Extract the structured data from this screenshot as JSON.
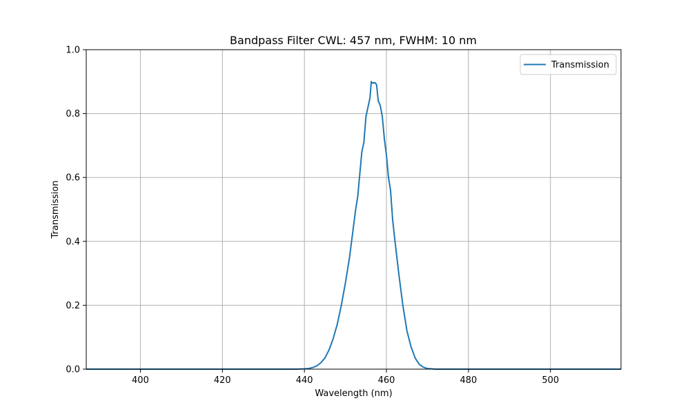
{
  "chart_data": {
    "type": "line",
    "title": "Bandpass Filter CWL: 457 nm, FWHM: 10 nm",
    "xlabel": "Wavelength (nm)",
    "ylabel": "Transmission",
    "xlim": [
      386.8,
      517.2
    ],
    "ylim": [
      0.0,
      1.0
    ],
    "xticks": [
      400,
      420,
      440,
      460,
      480,
      500
    ],
    "yticks": [
      0.0,
      0.2,
      0.4,
      0.6,
      0.8,
      1.0
    ],
    "xtick_labels": [
      "400",
      "420",
      "440",
      "460",
      "480",
      "500"
    ],
    "ytick_labels": [
      "0.0",
      "0.2",
      "0.4",
      "0.6",
      "0.8",
      "1.0"
    ],
    "grid": true,
    "legend": {
      "position": "top-right",
      "entries": [
        "Transmission"
      ]
    },
    "colors": {
      "series": "#1f77b4",
      "grid": "#b0b0b0"
    },
    "series": [
      {
        "name": "Transmission",
        "x": [
          386.8,
          400,
          420,
          438,
          440,
          441,
          442,
          443,
          444,
          445,
          446,
          447,
          448,
          449,
          450,
          451,
          452,
          452.5,
          453,
          453.5,
          454,
          454.5,
          455,
          455.5,
          456,
          456.3,
          456.7,
          457.0,
          457.3,
          457.6,
          458.0,
          458.5,
          459,
          459.5,
          460,
          460.5,
          461,
          461.5,
          462,
          463,
          464,
          465,
          466,
          467,
          468,
          469,
          470,
          471,
          472,
          474,
          476,
          480,
          500,
          517.2
        ],
        "y": [
          0.0,
          0.0,
          0.0,
          0.0,
          0.001,
          0.002,
          0.005,
          0.01,
          0.02,
          0.035,
          0.06,
          0.095,
          0.14,
          0.2,
          0.27,
          0.35,
          0.45,
          0.5,
          0.54,
          0.61,
          0.68,
          0.71,
          0.79,
          0.82,
          0.85,
          0.9,
          0.895,
          0.897,
          0.896,
          0.89,
          0.84,
          0.825,
          0.79,
          0.72,
          0.67,
          0.6,
          0.56,
          0.47,
          0.41,
          0.3,
          0.2,
          0.12,
          0.07,
          0.035,
          0.015,
          0.006,
          0.002,
          0.001,
          0.0,
          0.0,
          0.0,
          0.0,
          0.0,
          0.0
        ]
      }
    ]
  }
}
